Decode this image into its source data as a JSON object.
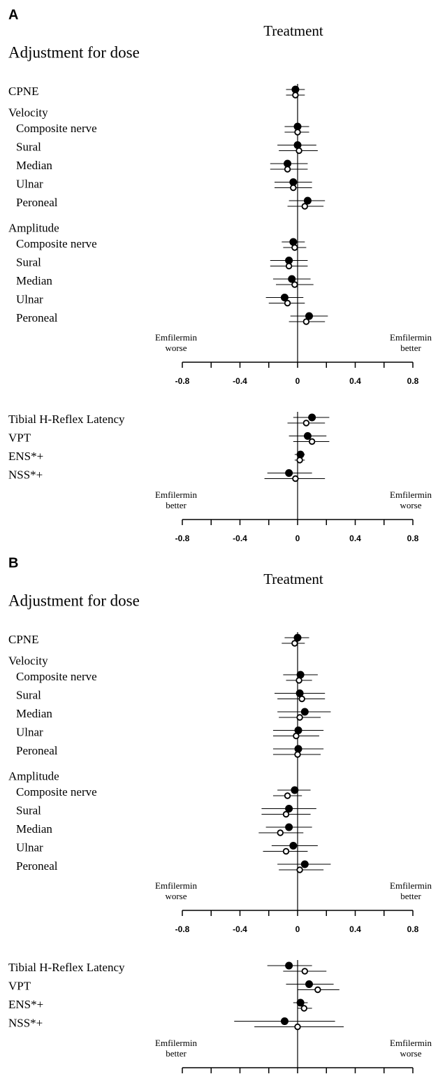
{
  "chart_data": [
    {
      "type": "forest",
      "panel": "A",
      "title": "Treatment",
      "subtitle": "Adjustment for dose",
      "categories": [
        "CPNE",
        "Velocity",
        "Composite nerve",
        "Sural",
        "Median",
        "Ulnar",
        "Peroneal",
        "Amplitude",
        "Composite nerve",
        "Sural",
        "Median",
        "Ulnar",
        "Peroneal"
      ],
      "series": [
        {
          "marker": "filled",
          "color": "#000000",
          "values": [
            -0.015,
            null,
            0.0,
            0.0,
            -0.07,
            -0.03,
            0.07,
            null,
            -0.03,
            -0.06,
            -0.04,
            -0.09,
            0.08
          ],
          "ci": [
            [
              -0.08,
              0.05
            ],
            null,
            [
              -0.09,
              0.08
            ],
            [
              -0.14,
              0.13
            ],
            [
              -0.19,
              0.07
            ],
            [
              -0.16,
              0.1
            ],
            [
              -0.06,
              0.19
            ],
            null,
            [
              -0.11,
              0.05
            ],
            [
              -0.19,
              0.07
            ],
            [
              -0.17,
              0.09
            ],
            [
              -0.22,
              0.04
            ],
            [
              -0.05,
              0.21
            ]
          ]
        },
        {
          "marker": "open",
          "color": "#000000",
          "values": [
            -0.015,
            null,
            0.0,
            0.01,
            -0.07,
            -0.03,
            0.05,
            null,
            -0.02,
            -0.06,
            -0.02,
            -0.07,
            0.06
          ],
          "ci": [
            [
              -0.08,
              0.05
            ],
            null,
            [
              -0.09,
              0.08
            ],
            [
              -0.13,
              0.14
            ],
            [
              -0.19,
              0.07
            ],
            [
              -0.16,
              0.1
            ],
            [
              -0.07,
              0.18
            ],
            null,
            [
              -0.1,
              0.06
            ],
            [
              -0.19,
              0.07
            ],
            [
              -0.15,
              0.11
            ],
            [
              -0.2,
              0.05
            ],
            [
              -0.06,
              0.19
            ]
          ]
        }
      ],
      "left_label": [
        "Emfilermin",
        "worse"
      ],
      "right_label": [
        "Emfilermin",
        "better"
      ],
      "xlim": [
        -0.8,
        0.8
      ],
      "xticks": [
        -0.8,
        -0.4,
        0,
        0.4,
        0.8
      ],
      "xminorticks": [
        -0.6,
        -0.2,
        0.2,
        0.6
      ]
    },
    {
      "type": "forest",
      "categories": [
        "Tibial H-Reflex Latency",
        "VPT",
        "ENS*+",
        "NSS*+"
      ],
      "series": [
        {
          "marker": "filled",
          "color": "#000000",
          "values": [
            0.1,
            0.07,
            0.02,
            -0.06
          ],
          "ci": [
            [
              -0.03,
              0.22
            ],
            [
              -0.06,
              0.2
            ],
            [
              -0.02,
              0.05
            ],
            [
              -0.21,
              0.1
            ]
          ]
        },
        {
          "marker": "open",
          "color": "#000000",
          "values": [
            0.06,
            0.1,
            0.015,
            -0.015
          ],
          "ci": [
            [
              -0.07,
              0.19
            ],
            [
              -0.03,
              0.22
            ],
            [
              -0.02,
              0.05
            ],
            [
              -0.23,
              0.19
            ]
          ]
        }
      ],
      "left_label": [
        "Emfilermin",
        "better"
      ],
      "right_label": [
        "Emfilermin",
        "worse"
      ],
      "xlim": [
        -0.8,
        0.8
      ],
      "xticks": [
        -0.8,
        -0.4,
        0,
        0.4,
        0.8
      ],
      "xminorticks": [
        -0.6,
        -0.2,
        0.2,
        0.6
      ]
    },
    {
      "type": "forest",
      "panel": "B",
      "title": "Treatment",
      "subtitle": "Adjustment for dose",
      "categories": [
        "CPNE",
        "Velocity",
        "Composite nerve",
        "Sural",
        "Median",
        "Ulnar",
        "Peroneal",
        "Amplitude",
        "Composite nerve",
        "Sural",
        "Median",
        "Ulnar",
        "Peroneal"
      ],
      "series": [
        {
          "marker": "filled",
          "color": "#000000",
          "values": [
            0.0,
            null,
            0.02,
            0.015,
            0.05,
            0.005,
            0.005,
            null,
            -0.02,
            -0.06,
            -0.06,
            -0.03,
            0.05
          ],
          "ci": [
            [
              -0.09,
              0.08
            ],
            null,
            [
              -0.1,
              0.14
            ],
            [
              -0.16,
              0.19
            ],
            [
              -0.14,
              0.23
            ],
            [
              -0.17,
              0.18
            ],
            [
              -0.17,
              0.18
            ],
            null,
            [
              -0.14,
              0.09
            ],
            [
              -0.25,
              0.13
            ],
            [
              -0.22,
              0.1
            ],
            [
              -0.18,
              0.14
            ],
            [
              -0.14,
              0.23
            ]
          ]
        },
        {
          "marker": "open",
          "color": "#000000",
          "values": [
            -0.02,
            null,
            0.01,
            0.03,
            0.015,
            -0.01,
            0.0,
            null,
            -0.07,
            -0.08,
            -0.12,
            -0.08,
            0.015
          ],
          "ci": [
            [
              -0.11,
              0.05
            ],
            null,
            [
              -0.08,
              0.1
            ],
            [
              -0.14,
              0.19
            ],
            [
              -0.13,
              0.16
            ],
            [
              -0.17,
              0.15
            ],
            [
              -0.17,
              0.16
            ],
            null,
            [
              -0.17,
              0.03
            ],
            [
              -0.25,
              0.09
            ],
            [
              -0.27,
              0.04
            ],
            [
              -0.24,
              0.07
            ],
            [
              -0.13,
              0.18
            ]
          ]
        }
      ],
      "left_label": [
        "Emfilermin",
        "worse"
      ],
      "right_label": [
        "Emfilermin",
        "better"
      ],
      "xlim": [
        -0.8,
        0.8
      ],
      "xticks": [
        -0.8,
        -0.4,
        0,
        0.4,
        0.8
      ],
      "xminorticks": [
        -0.6,
        -0.2,
        0.2,
        0.6
      ]
    },
    {
      "type": "forest",
      "categories": [
        "Tibial H-Reflex Latency",
        "VPT",
        "ENS*+",
        "NSS*+"
      ],
      "series": [
        {
          "marker": "filled",
          "color": "#000000",
          "values": [
            -0.06,
            0.08,
            0.02,
            -0.09
          ],
          "ci": [
            [
              -0.21,
              0.1
            ],
            [
              -0.08,
              0.25
            ],
            [
              -0.03,
              0.07
            ],
            [
              -0.44,
              0.26
            ]
          ]
        },
        {
          "marker": "open",
          "color": "#000000",
          "values": [
            0.05,
            0.14,
            0.045,
            0.0
          ],
          "ci": [
            [
              -0.1,
              0.2
            ],
            [
              0.0,
              0.29
            ],
            [
              0.0,
              0.1
            ],
            [
              -0.3,
              0.32
            ]
          ]
        }
      ],
      "left_label": [
        "Emfilermin",
        "better"
      ],
      "right_label": [
        "Emfilermin",
        "worse"
      ],
      "xlim": [
        -0.8,
        0.8
      ],
      "xticks": [
        -0.8,
        -0.4,
        0,
        0.4,
        0.8
      ],
      "xminorticks": [
        -0.6,
        -0.2,
        0.2,
        0.6
      ]
    }
  ]
}
